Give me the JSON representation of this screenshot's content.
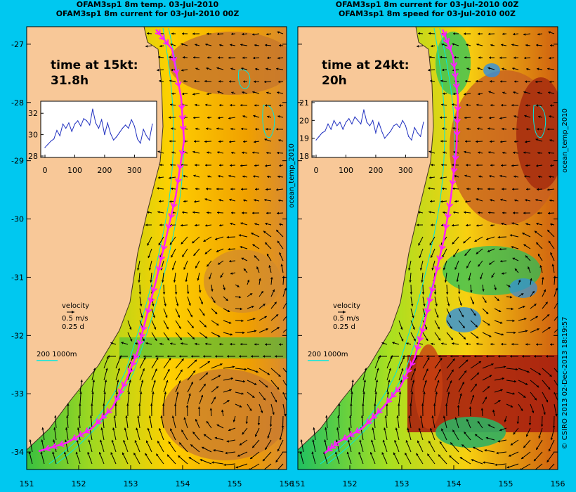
{
  "headers": {
    "left_line1": "OFAM3sp1 8m temp. 03-Jul-2010",
    "left_line2": "OFAM3sp1 8m current for 03-Jul-2010 00Z",
    "right_line1": "OFAM3sp1 8m current for 03-Jul-2010 00Z",
    "right_line2": "OFAM3sp1 8m speed for 03-Jul-2010 00Z"
  },
  "side_labels": {
    "middle": "ocean_temp_2010",
    "right": "ocean_temp_2010",
    "credit": "© CSIRO 2013   02-Dec-2013 18:19:57"
  },
  "panels": [
    {
      "time_text": "time at 15kt:",
      "time_value": "31.8h",
      "velocity_label": "velocity",
      "velocity_speed": "0.5 m/s",
      "velocity_days": "0.25 d",
      "contour_label": "200  1000m"
    },
    {
      "time_text": "time at 24kt:",
      "time_value": "20h",
      "velocity_label": "velocity",
      "velocity_speed": "0.5 m/s",
      "velocity_days": "0.25 d",
      "contour_label": "200  1000m"
    }
  ],
  "chart_data": [
    {
      "type": "heatmap",
      "title": "OFAM3sp1 8m temp. 03-Jul-2010",
      "x_ticks": [
        "151",
        "152",
        "153",
        "154",
        "155",
        "156"
      ],
      "y_ticks": [
        "-27",
        "-28",
        "-29",
        "-30",
        "-31",
        "-32",
        "-33",
        "-34"
      ],
      "xlim": [
        151,
        156
      ],
      "ylim": [
        -34.3,
        -26.7
      ],
      "field": "temperature",
      "vector_field": "8m current",
      "route": {
        "from": [
          153.6,
          -26.8
        ],
        "to": [
          151.5,
          -34.0
        ]
      },
      "inset": {
        "type": "line",
        "x_ticks": [
          "0",
          "100",
          "200",
          "300"
        ],
        "y_ticks": [
          "28",
          "30",
          "32"
        ],
        "xlim": [
          0,
          365
        ],
        "ylim": [
          28,
          33
        ],
        "x": [
          0,
          10,
          20,
          30,
          40,
          50,
          60,
          70,
          80,
          90,
          100,
          110,
          120,
          130,
          140,
          150,
          160,
          170,
          180,
          190,
          200,
          210,
          220,
          230,
          240,
          250,
          260,
          270,
          280,
          290,
          300,
          310,
          320,
          330,
          340,
          350,
          360
        ],
        "values": [
          28.8,
          29.1,
          29.4,
          29.6,
          30.4,
          29.9,
          31.0,
          30.6,
          31.1,
          30.3,
          31.0,
          31.3,
          30.8,
          31.5,
          31.3,
          30.9,
          32.4,
          31.1,
          30.6,
          31.4,
          30.0,
          31.1,
          30.1,
          29.5,
          29.8,
          30.2,
          30.6,
          30.9,
          30.6,
          31.4,
          30.8,
          29.6,
          29.2,
          30.5,
          29.9,
          29.5,
          31.0
        ]
      }
    },
    {
      "type": "heatmap",
      "title": "OFAM3sp1 8m speed for 03-Jul-2010 00Z",
      "x_ticks": [
        "151",
        "152",
        "153",
        "154",
        "155",
        "156"
      ],
      "xlim": [
        151,
        156
      ],
      "ylim": [
        -34.3,
        -26.7
      ],
      "field": "speed",
      "vector_field": "8m current",
      "route": {
        "from": [
          153.6,
          -26.8
        ],
        "to": [
          151.5,
          -34.0
        ]
      },
      "inset": {
        "type": "line",
        "x_ticks": [
          "0",
          "100",
          "200",
          "300"
        ],
        "y_ticks": [
          "18",
          "19",
          "20",
          "21"
        ],
        "xlim": [
          0,
          365
        ],
        "ylim": [
          18,
          21
        ],
        "x": [
          0,
          10,
          20,
          30,
          40,
          50,
          60,
          70,
          80,
          90,
          100,
          110,
          120,
          130,
          140,
          150,
          160,
          170,
          180,
          190,
          200,
          210,
          220,
          230,
          240,
          250,
          260,
          270,
          280,
          290,
          300,
          310,
          320,
          330,
          340,
          350,
          360
        ],
        "values": [
          18.9,
          19.1,
          19.3,
          19.4,
          19.8,
          19.5,
          20.0,
          19.7,
          19.9,
          19.5,
          19.9,
          20.1,
          19.8,
          20.2,
          20.0,
          19.8,
          20.6,
          19.9,
          19.7,
          20.0,
          19.3,
          19.9,
          19.4,
          19.0,
          19.2,
          19.4,
          19.7,
          19.8,
          19.6,
          20.0,
          19.7,
          19.1,
          18.9,
          19.6,
          19.3,
          19.1,
          19.9
        ]
      }
    }
  ],
  "colors": {
    "background": "#00c8f0",
    "land": "#f8c898",
    "route": "#ff20ff",
    "contour": "#00e8e0",
    "vector": "#000000"
  }
}
